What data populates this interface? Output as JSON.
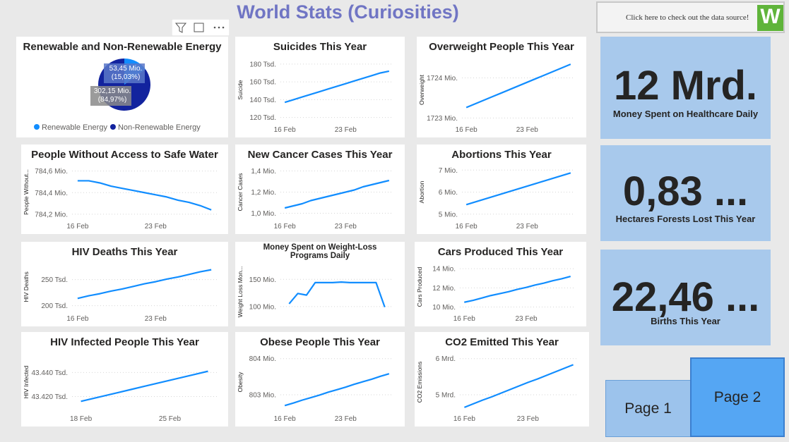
{
  "header": {
    "title": "World Stats (Curiosities)",
    "source_button": "Click here to check out the data source!"
  },
  "chart_data": [
    {
      "type": "pie",
      "title": "Renewable and Non-Renewable Energy",
      "categories": [
        "Renewable Energy",
        "Non-Renewable Energy"
      ],
      "values": [
        53.45,
        302.15
      ],
      "value_labels": [
        "53,45 Mio.",
        "302,15 Mio."
      ],
      "percent_labels": [
        "(15,03%)",
        "(84,97%)"
      ],
      "colors": [
        "#118dff",
        "#12239e"
      ]
    },
    {
      "type": "line",
      "title": "Suicides This Year",
      "y_label": "Suicide",
      "color": "#118dff",
      "grid": true,
      "x": [
        16,
        17,
        18,
        19,
        20,
        21,
        22,
        23,
        24,
        25,
        26,
        27,
        28
      ],
      "values": [
        137,
        140,
        143,
        146,
        149,
        152,
        155,
        158,
        161,
        164,
        167,
        170,
        172
      ],
      "xlim": [
        15.5,
        28.5
      ],
      "xticks": [
        {
          "value": 16,
          "label": "16 Feb"
        },
        {
          "value": 23,
          "label": "23 Feb"
        }
      ],
      "ylim": [
        115,
        187
      ],
      "yticks": [
        {
          "value": 120,
          "label": "120 Tsd."
        },
        {
          "value": 140,
          "label": "140 Tsd."
        },
        {
          "value": 160,
          "label": "160 Tsd."
        },
        {
          "value": 180,
          "label": "180 Tsd."
        }
      ]
    },
    {
      "type": "line",
      "title": "Overweight People This Year",
      "y_label": "Overweight",
      "color": "#118dff",
      "grid": true,
      "x": [
        16,
        17,
        18,
        19,
        20,
        21,
        22,
        23,
        24,
        25,
        26,
        27,
        28
      ],
      "values": [
        1723.26,
        1723.35,
        1723.44,
        1723.53,
        1723.62,
        1723.71,
        1723.8,
        1723.89,
        1723.98,
        1724.07,
        1724.16,
        1724.25,
        1724.34
      ],
      "xlim": [
        15.5,
        28.5
      ],
      "xticks": [
        {
          "value": 16,
          "label": "16 Feb"
        },
        {
          "value": 23,
          "label": "23 Feb"
        }
      ],
      "ylim": [
        1722.9,
        1724.5
      ],
      "yticks": [
        {
          "value": 1723,
          "label": "1723 Mio."
        },
        {
          "value": 1724,
          "label": "1724 Mio."
        }
      ]
    },
    {
      "type": "line",
      "title": "People Without Access to Safe Water",
      "y_label": "People Without...",
      "color": "#118dff",
      "grid": true,
      "x": [
        16,
        17,
        18,
        19,
        20,
        21,
        22,
        23,
        24,
        25,
        26,
        27,
        28
      ],
      "values": [
        784.51,
        784.51,
        784.49,
        784.46,
        784.44,
        784.42,
        784.4,
        784.38,
        784.36,
        784.33,
        784.31,
        784.28,
        784.24
      ],
      "xlim": [
        15.5,
        28.5
      ],
      "xticks": [
        {
          "value": 16,
          "label": "16 Feb"
        },
        {
          "value": 23,
          "label": "23 Feb"
        }
      ],
      "ylim": [
        784.16,
        784.65
      ],
      "yticks": [
        {
          "value": 784.2,
          "label": "784,2 Mio."
        },
        {
          "value": 784.4,
          "label": "784,4 Mio."
        },
        {
          "value": 784.6,
          "label": "784,6 Mio."
        }
      ]
    },
    {
      "type": "line",
      "title": "New Cancer Cases This Year",
      "y_label": "Cancer Cases",
      "color": "#118dff",
      "grid": true,
      "x": [
        16,
        17,
        18,
        19,
        20,
        21,
        22,
        23,
        24,
        25,
        26,
        27,
        28
      ],
      "values": [
        1.05,
        1.07,
        1.09,
        1.12,
        1.14,
        1.16,
        1.18,
        1.2,
        1.22,
        1.25,
        1.27,
        1.29,
        1.31
      ],
      "xlim": [
        15.5,
        28.5
      ],
      "xticks": [
        {
          "value": 16,
          "label": "16 Feb"
        },
        {
          "value": 23,
          "label": "23 Feb"
        }
      ],
      "ylim": [
        0.95,
        1.45
      ],
      "yticks": [
        {
          "value": 1.0,
          "label": "1,0 Mio."
        },
        {
          "value": 1.2,
          "label": "1,2 Mio."
        },
        {
          "value": 1.4,
          "label": "1,4 Mio."
        }
      ]
    },
    {
      "type": "line",
      "title": "Abortions This Year",
      "y_label": "Abortion",
      "color": "#118dff",
      "grid": true,
      "x": [
        16,
        17,
        18,
        19,
        20,
        21,
        22,
        23,
        24,
        25,
        26,
        27,
        28
      ],
      "values": [
        5.43,
        5.55,
        5.67,
        5.79,
        5.91,
        6.03,
        6.15,
        6.27,
        6.39,
        6.51,
        6.63,
        6.75,
        6.87
      ],
      "xlim": [
        15.5,
        28.5
      ],
      "xticks": [
        {
          "value": 16,
          "label": "16 Feb"
        },
        {
          "value": 23,
          "label": "23 Feb"
        }
      ],
      "ylim": [
        4.8,
        7.2
      ],
      "yticks": [
        {
          "value": 5,
          "label": "5 Mio."
        },
        {
          "value": 6,
          "label": "6 Mio."
        },
        {
          "value": 7,
          "label": "7 Mio."
        }
      ]
    },
    {
      "type": "line",
      "title": "HIV Deaths This Year",
      "y_label": "HIV Deaths",
      "color": "#118dff",
      "grid": true,
      "x": [
        16,
        17,
        18,
        19,
        20,
        21,
        22,
        23,
        24,
        25,
        26,
        27,
        28
      ],
      "values": [
        214,
        219,
        223,
        228,
        232,
        237,
        242,
        246,
        251,
        255,
        260,
        265,
        269
      ],
      "xlim": [
        15.5,
        28.5
      ],
      "xticks": [
        {
          "value": 16,
          "label": "16 Feb"
        },
        {
          "value": 23,
          "label": "23 Feb"
        }
      ],
      "ylim": [
        190,
        282
      ],
      "yticks": [
        {
          "value": 200,
          "label": "200 Tsd."
        },
        {
          "value": 250,
          "label": "250 Tsd."
        }
      ]
    },
    {
      "type": "line",
      "title": "Money Spent on Weight-Loss Programs Daily",
      "y_label": "Weight Loss Mon...",
      "color": "#118dff",
      "grid": true,
      "x": [
        16,
        17,
        18,
        19,
        20,
        21,
        22,
        23,
        24,
        25,
        26,
        27
      ],
      "values": [
        105,
        124,
        121,
        144,
        144,
        144,
        145,
        144,
        144,
        144,
        144,
        99
      ],
      "xlim": [
        15,
        28
      ],
      "ylim": [
        92,
        162
      ],
      "yticks": [
        {
          "value": 100,
          "label": "100 Mio."
        },
        {
          "value": 150,
          "label": "150 Mio."
        }
      ]
    },
    {
      "type": "line",
      "title": "Cars Produced This Year",
      "y_label": "Cars Produced",
      "color": "#118dff",
      "grid": true,
      "x": [
        16,
        17,
        18,
        19,
        20,
        21,
        22,
        23,
        24,
        25,
        26,
        27,
        28
      ],
      "values": [
        10.5,
        10.7,
        10.95,
        11.2,
        11.4,
        11.6,
        11.85,
        12.05,
        12.3,
        12.5,
        12.75,
        12.95,
        13.2
      ],
      "xlim": [
        15.5,
        28.5
      ],
      "xticks": [
        {
          "value": 16,
          "label": "16 Feb"
        },
        {
          "value": 23,
          "label": "23 Feb"
        }
      ],
      "ylim": [
        9.6,
        14.6
      ],
      "yticks": [
        {
          "value": 10,
          "label": "10 Mio."
        },
        {
          "value": 12,
          "label": "12 Mio."
        },
        {
          "value": 14,
          "label": "14 Mio."
        }
      ]
    },
    {
      "type": "line",
      "title": "HIV Infected People This Year",
      "y_label": "HIV Infected",
      "color": "#118dff",
      "grid": true,
      "x": [
        18,
        19,
        20,
        21,
        22,
        23,
        24,
        25,
        26,
        27,
        28
      ],
      "values": [
        43416,
        43418.5,
        43421,
        43423.5,
        43426,
        43428.5,
        43431,
        43433.5,
        43436,
        43438.5,
        43441
      ],
      "xlim": [
        17.3,
        28.7
      ],
      "xticks": [
        {
          "value": 18,
          "label": "18 Feb"
        },
        {
          "value": 25,
          "label": "25 Feb"
        }
      ],
      "ylim": [
        43408,
        43456
      ],
      "yticks": [
        {
          "value": 43420,
          "label": "43.420 Tsd."
        },
        {
          "value": 43440,
          "label": "43.440 Tsd."
        }
      ]
    },
    {
      "type": "line",
      "title": "Obese People This Year",
      "y_label": "Obesity",
      "color": "#118dff",
      "grid": true,
      "x": [
        16,
        17,
        18,
        19,
        20,
        21,
        22,
        23,
        24,
        25,
        26,
        27,
        28
      ],
      "values": [
        802.7,
        802.77,
        802.85,
        802.92,
        802.99,
        803.07,
        803.14,
        803.21,
        803.29,
        803.36,
        803.43,
        803.51,
        803.58
      ],
      "xlim": [
        15.5,
        28.5
      ],
      "xticks": [
        {
          "value": 16,
          "label": "16 Feb"
        },
        {
          "value": 23,
          "label": "23 Feb"
        }
      ],
      "ylim": [
        802.55,
        804.15
      ],
      "yticks": [
        {
          "value": 803,
          "label": "803 Mio."
        },
        {
          "value": 804,
          "label": "804 Mio."
        }
      ]
    },
    {
      "type": "line",
      "title": "CO2 Emitted This Year",
      "y_label": "CO2 Emissions",
      "color": "#118dff",
      "grid": true,
      "x": [
        16,
        17,
        18,
        19,
        20,
        21,
        22,
        23,
        24,
        25,
        26,
        27,
        28
      ],
      "values": [
        4.65,
        4.75,
        4.85,
        4.94,
        5.04,
        5.14,
        5.24,
        5.34,
        5.43,
        5.53,
        5.63,
        5.73,
        5.83
      ],
      "xlim": [
        15.5,
        28.5
      ],
      "xticks": [
        {
          "value": 16,
          "label": "16 Feb"
        },
        {
          "value": 23,
          "label": "23 Feb"
        }
      ],
      "ylim": [
        4.55,
        6.15
      ],
      "yticks": [
        {
          "value": 5,
          "label": "5 Mrd."
        },
        {
          "value": 6,
          "label": "6 Mrd."
        }
      ]
    }
  ],
  "kpis": [
    {
      "value": "12 Mrd.",
      "label": "Money Spent on Healthcare Daily"
    },
    {
      "value": "0,83 ...",
      "label": "Hectares Forests Lost This Year"
    },
    {
      "value": "22,46 ...",
      "label": "Births This Year"
    }
  ],
  "buttons": [
    "Page 1",
    "Page 2"
  ]
}
